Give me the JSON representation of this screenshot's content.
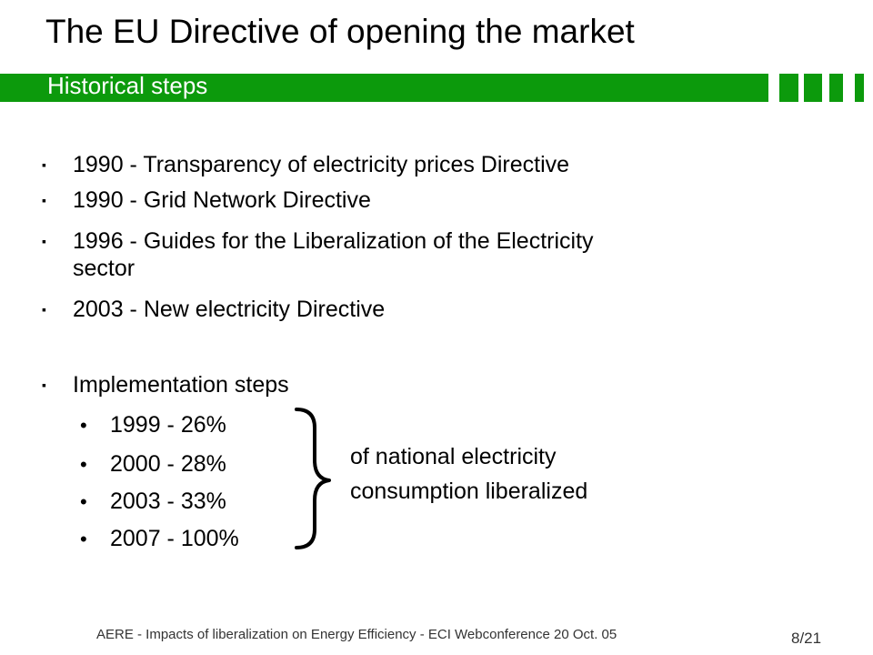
{
  "slide": {
    "title": "The EU Directive of opening the market",
    "subtitle": "Historical steps",
    "bullets": [
      "1990 - Transparency of electricity prices Directive",
      "1990 - Grid Network Directive",
      "1996 - Guides for the Liberalization of the Electricity",
      "sector",
      "2003 - New electricity Directive",
      "Implementation steps"
    ],
    "bullet_marker": "▪",
    "sub_marker": "•",
    "sub_items": [
      "1999 - 26%",
      "2000 - 28%",
      "2003 - 33%",
      "2007 - 100%"
    ],
    "note_lines": [
      "of national electricity",
      "consumption liberalized"
    ],
    "footer": "AERE - Impacts of liberalization on Energy Efficiency - ECI Webconference 20 Oct.  05",
    "page_number": "8/21",
    "colors": {
      "accent_green": "#0c9a0c",
      "text": "#000000"
    }
  }
}
